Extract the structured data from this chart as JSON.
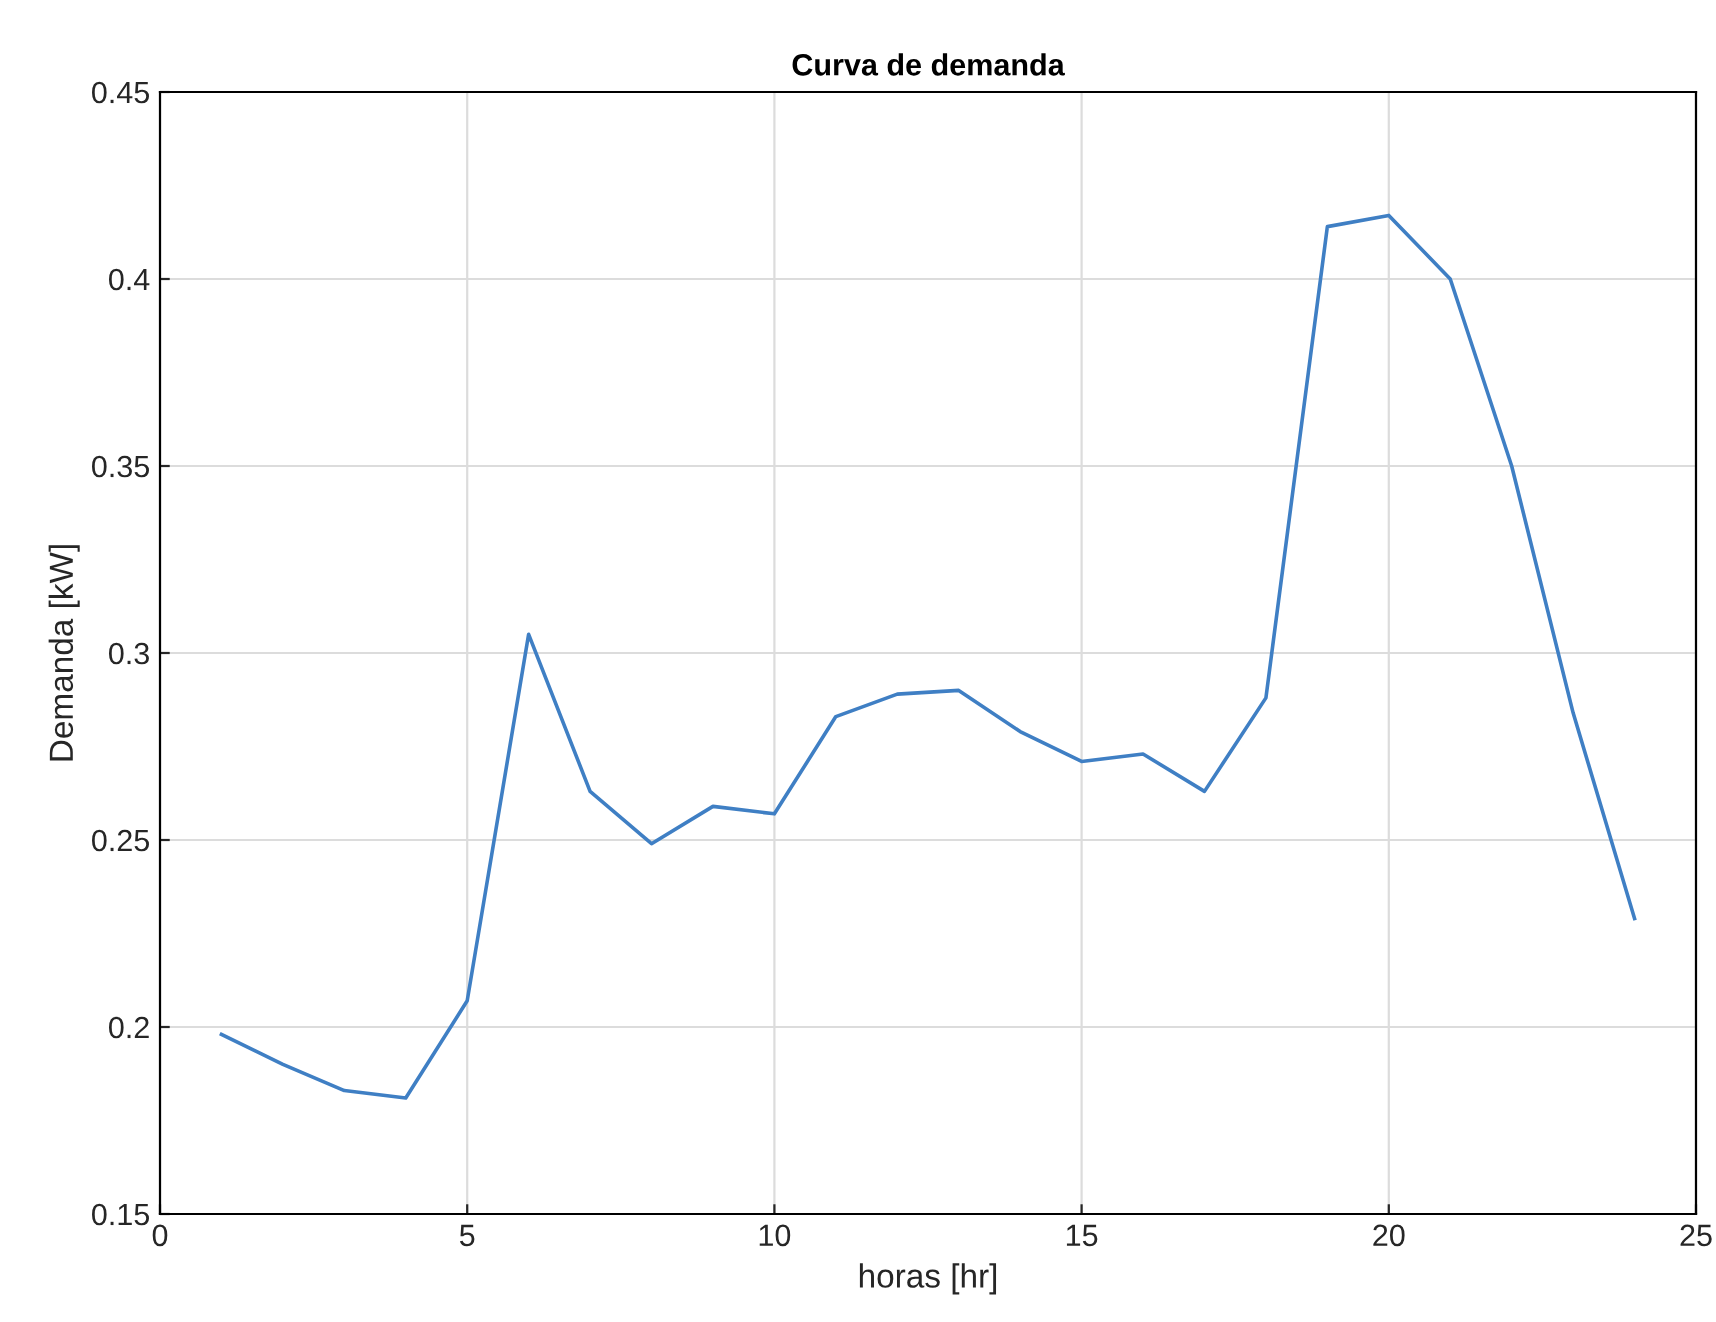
{
  "chart_data": {
    "type": "line",
    "title": "Curva de demanda",
    "xlabel": "horas [hr]",
    "ylabel": "Demanda [kW]",
    "x": [
      1,
      2,
      3,
      4,
      5,
      6,
      7,
      8,
      9,
      10,
      11,
      12,
      13,
      14,
      15,
      16,
      17,
      18,
      19,
      20,
      21,
      22,
      23,
      24
    ],
    "series": [
      {
        "color": "#3f7fc4",
        "values": [
          0.198,
          0.19,
          0.183,
          0.181,
          0.207,
          0.305,
          0.263,
          0.249,
          0.259,
          0.257,
          0.283,
          0.289,
          0.29,
          0.279,
          0.271,
          0.273,
          0.263,
          0.288,
          0.414,
          0.417,
          0.4,
          0.35,
          0.284,
          0.229
        ]
      }
    ],
    "xlim": [
      0,
      25
    ],
    "xticks": [
      0,
      5,
      10,
      15,
      20,
      25
    ],
    "ylim": [
      0.15,
      0.45
    ],
    "yticks": [
      0.15,
      0.2,
      0.25,
      0.3,
      0.35,
      0.4,
      0.45
    ],
    "grid": true,
    "legend": false,
    "marker": "none",
    "line_style": "solid"
  }
}
